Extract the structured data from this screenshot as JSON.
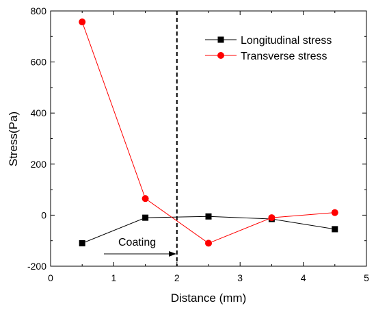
{
  "chart_data": {
    "type": "line",
    "xlabel": "Distance (mm)",
    "ylabel": "Stress(Pa)",
    "xlim": [
      0,
      5
    ],
    "ylim": [
      -200,
      800
    ],
    "xticks": [
      "0",
      "1",
      "2",
      "3",
      "4",
      "5"
    ],
    "yticks": [
      "-200",
      "0",
      "200",
      "400",
      "600",
      "800"
    ],
    "x": [
      0.5,
      1.5,
      2.5,
      3.5,
      4.5
    ],
    "series": [
      {
        "name": "Longitudinal stress",
        "color": "#000000",
        "marker": "square",
        "values": [
          -110,
          -10,
          -5,
          -15,
          -55
        ]
      },
      {
        "name": "Transverse stress",
        "color": "#ff0000",
        "marker": "circle",
        "values": [
          757,
          65,
          -110,
          -10,
          10
        ]
      }
    ],
    "legend_position": "top-right",
    "grid": false,
    "reference_line": {
      "x": 2,
      "style": "dashed"
    },
    "annotation": {
      "text": "Coating",
      "arrow": "right"
    }
  }
}
